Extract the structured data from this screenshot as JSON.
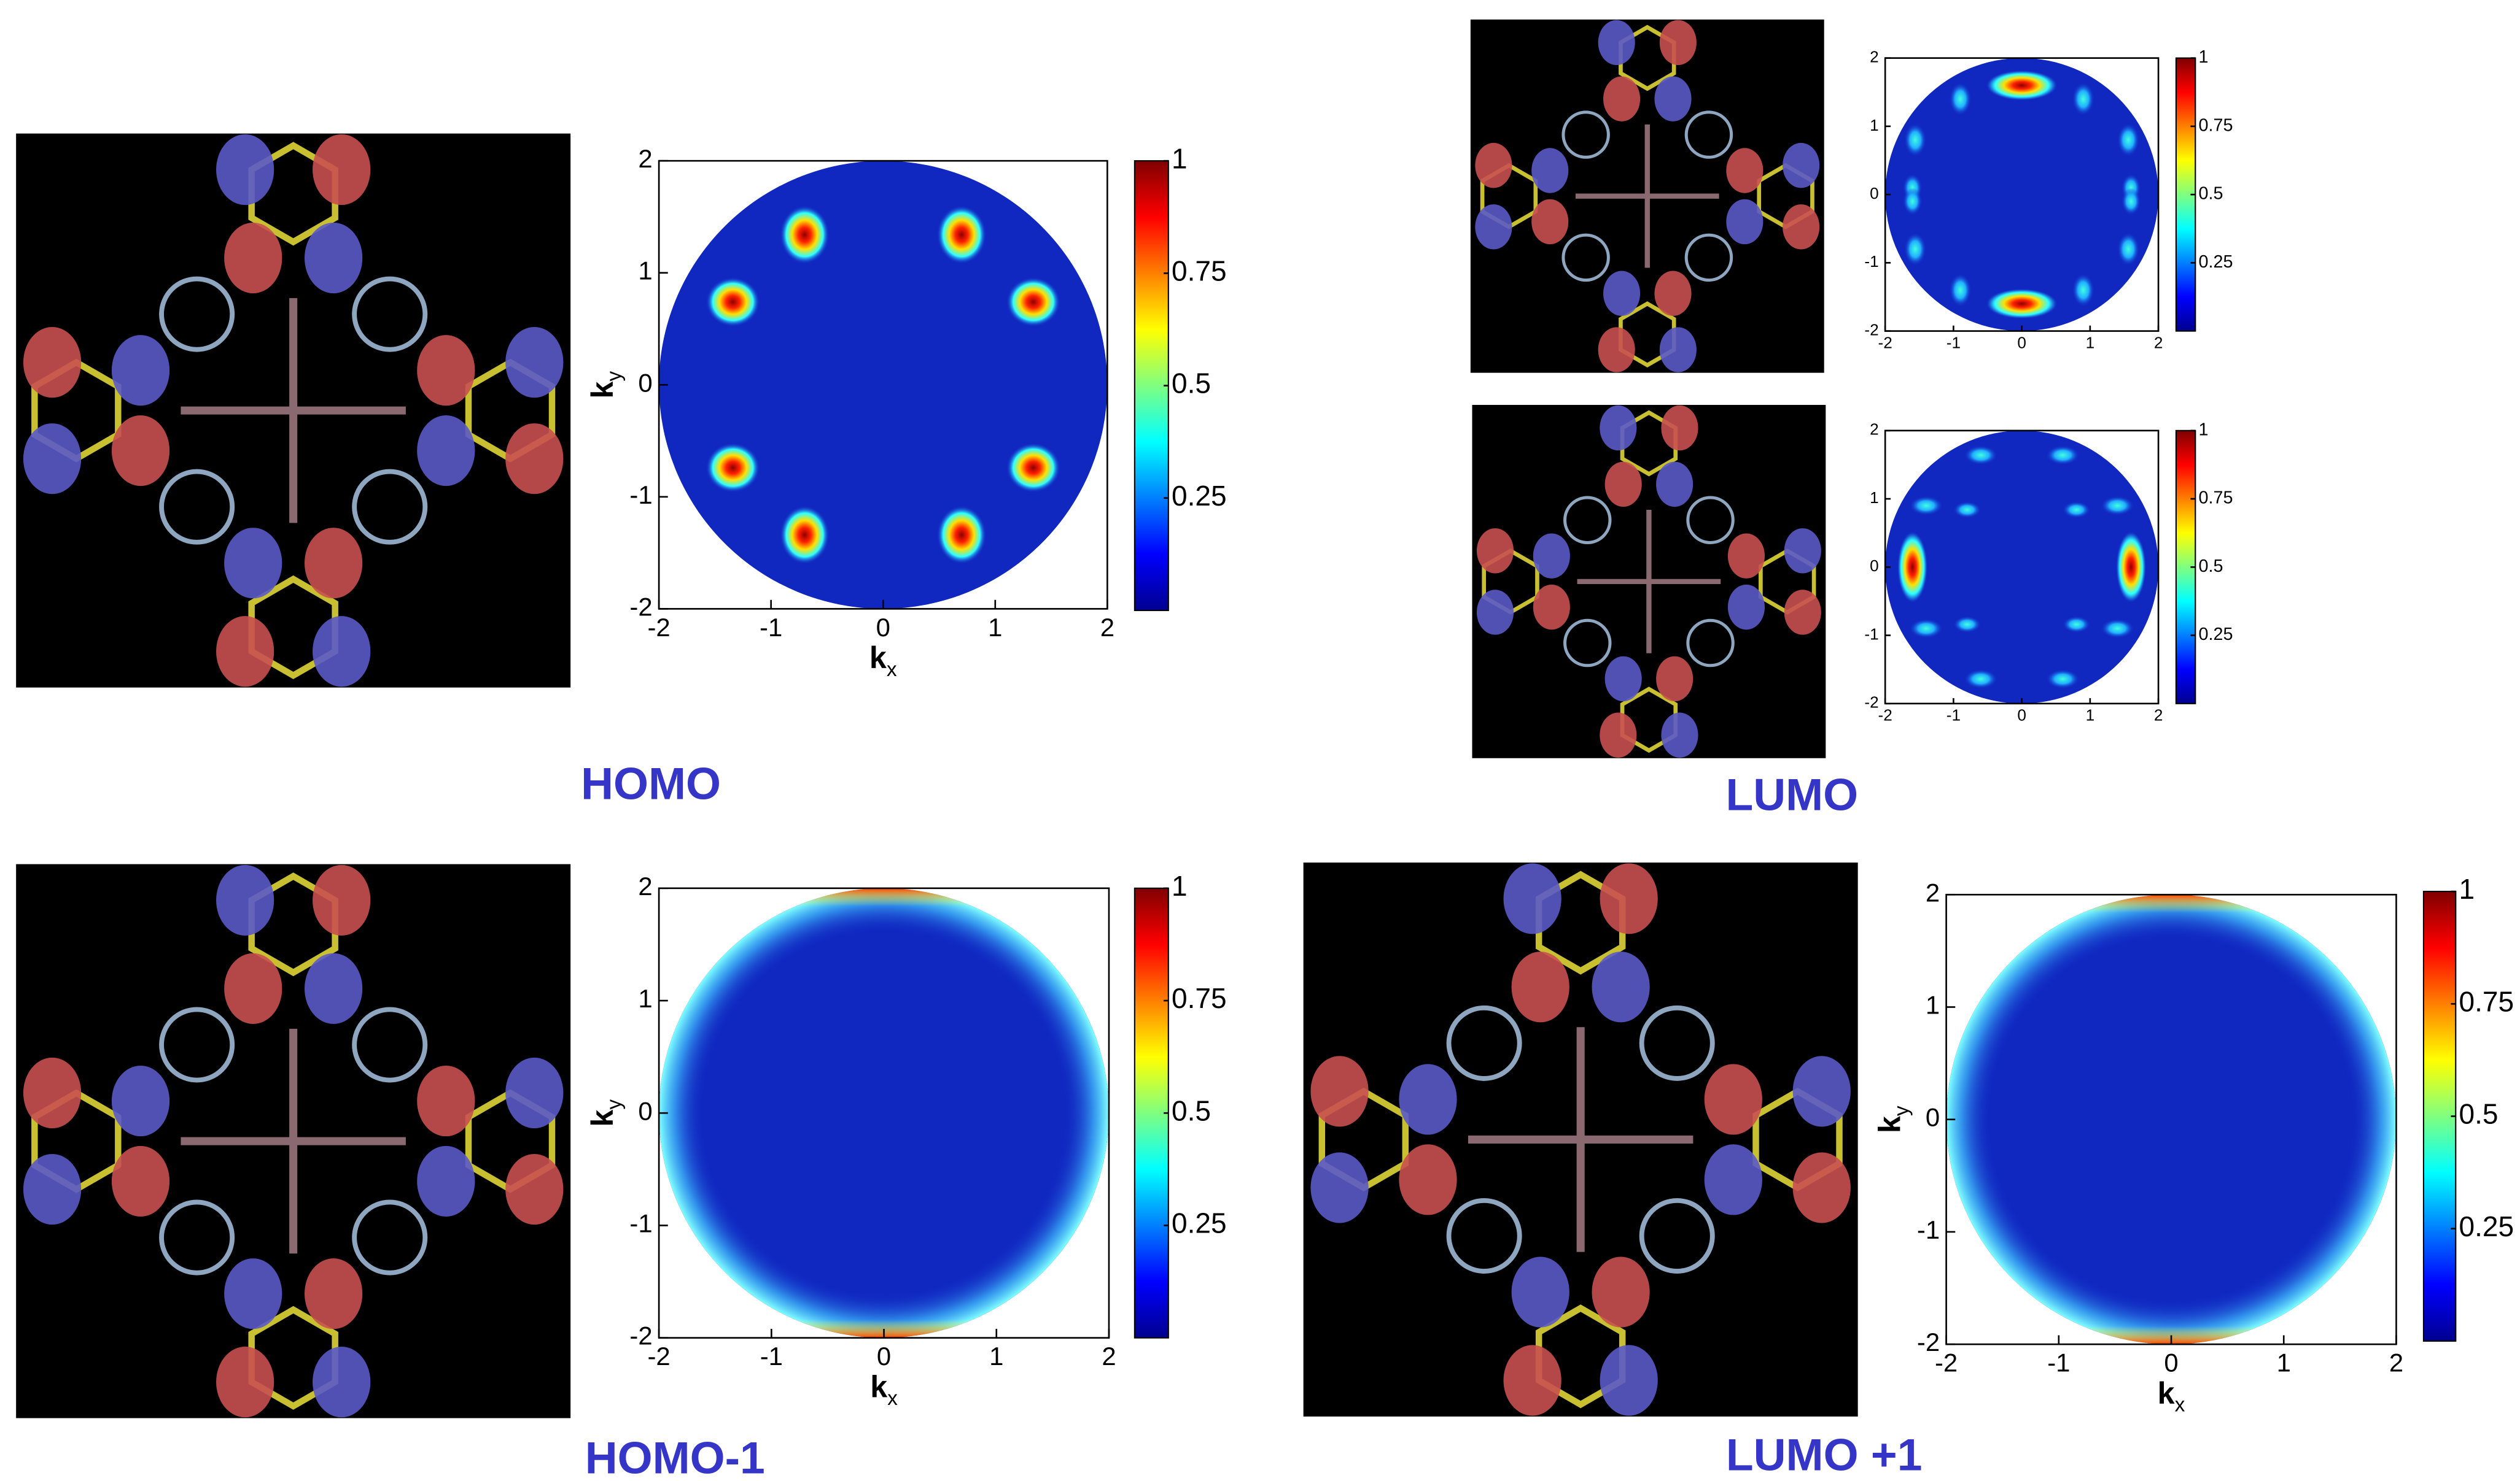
{
  "panels": [
    {
      "label": "HOMO",
      "maps": [
        {
          "xlim": [
            -2,
            2
          ],
          "ylim": [
            -2,
            2
          ],
          "xticks": [
            -2,
            -1,
            0,
            1,
            2
          ],
          "yticks": [
            -2,
            -1,
            0,
            1,
            2
          ],
          "colorbar_lim": [
            0,
            1
          ],
          "colorbar_ticks": [
            0.25,
            0.5,
            0.75,
            1
          ],
          "xlabel": {
            "main": "k",
            "sub": "x"
          },
          "ylabel": {
            "main": "k",
            "sub": "y"
          }
        }
      ]
    },
    {
      "label": "LUMO",
      "maps": [
        {
          "xlim": [
            -2,
            2
          ],
          "ylim": [
            -2,
            2
          ],
          "xticks": [
            -2,
            -1,
            0,
            1,
            2
          ],
          "yticks": [
            -2,
            -1,
            0,
            1,
            2
          ],
          "colorbar_lim": [
            0,
            1
          ],
          "colorbar_ticks": [
            0.25,
            0.5,
            0.75,
            1
          ]
        },
        {
          "xlim": [
            -2,
            2
          ],
          "ylim": [
            -2,
            2
          ],
          "xticks": [
            -2,
            -1,
            0,
            1,
            2
          ],
          "yticks": [
            -2,
            -1,
            0,
            1,
            2
          ],
          "colorbar_lim": [
            0,
            1
          ],
          "colorbar_ticks": [
            0.25,
            0.5,
            0.75,
            1
          ]
        }
      ]
    },
    {
      "label": "HOMO-1",
      "maps": [
        {
          "xlim": [
            -2,
            2
          ],
          "ylim": [
            -2,
            2
          ],
          "xticks": [
            -2,
            -1,
            0,
            1,
            2
          ],
          "yticks": [
            -2,
            -1,
            0,
            1,
            2
          ],
          "colorbar_lim": [
            0,
            1
          ],
          "colorbar_ticks": [
            0.25,
            0.5,
            0.75,
            1
          ],
          "xlabel": {
            "main": "k",
            "sub": "x"
          },
          "ylabel": {
            "main": "k",
            "sub": "y"
          }
        }
      ]
    },
    {
      "label": "LUMO +1",
      "maps": [
        {
          "xlim": [
            -2,
            2
          ],
          "ylim": [
            -2,
            2
          ],
          "xticks": [
            -2,
            -1,
            0,
            1,
            2
          ],
          "yticks": [
            -2,
            -1,
            0,
            1,
            2
          ],
          "colorbar_lim": [
            0,
            1
          ],
          "colorbar_ticks": [
            0.25,
            0.5,
            0.75,
            1
          ],
          "xlabel": {
            "main": "k",
            "sub": "x"
          },
          "ylabel": {
            "main": "k",
            "sub": "y"
          }
        }
      ]
    }
  ]
}
